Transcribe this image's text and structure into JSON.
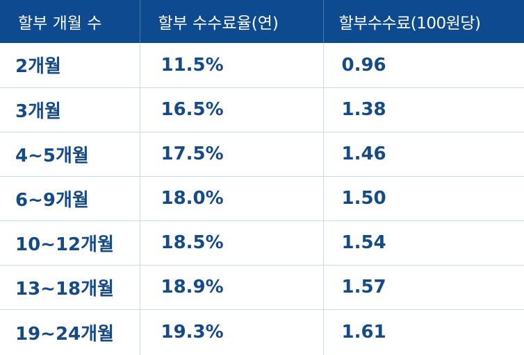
{
  "table": {
    "headers": [
      "할부 개월 수",
      "할부 수수료율(연)",
      "할부수수료(100원당)"
    ],
    "rows": [
      [
        "2개월",
        "11.5%",
        "0.96"
      ],
      [
        "3개월",
        "16.5%",
        "1.38"
      ],
      [
        "4~5개월",
        "17.5%",
        "1.46"
      ],
      [
        "6~9개월",
        "18.0%",
        "1.50"
      ],
      [
        "10~12개월",
        "18.5%",
        "1.54"
      ],
      [
        "13~18개월",
        "18.9%",
        "1.57"
      ],
      [
        "19~24개월",
        "19.3%",
        "1.61"
      ]
    ]
  },
  "colors": {
    "header_bg": "#0d4a8f",
    "header_text": "#ffffff",
    "body_text": "#144a87",
    "grid_line": "#c9d9ea"
  }
}
